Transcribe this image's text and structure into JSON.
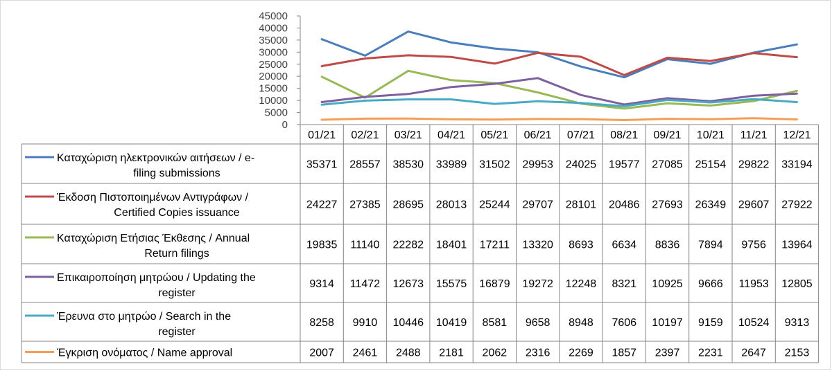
{
  "chart_data": {
    "type": "line",
    "ylim": [
      0,
      45000
    ],
    "yticks": [
      0,
      5000,
      10000,
      15000,
      20000,
      25000,
      30000,
      35000,
      40000,
      45000
    ],
    "grid": false,
    "legend": "data-table-below",
    "categories": [
      "01/21",
      "02/21",
      "03/21",
      "04/21",
      "05/21",
      "06/21",
      "07/21",
      "08/21",
      "09/21",
      "10/21",
      "11/21",
      "12/21"
    ],
    "series": [
      {
        "name": "Καταχώριση ηλεκτρονικών αιτήσεων / e-filing submissions",
        "label_lines": [
          "Καταχώριση ηλεκτρονικών αιτήσεων / e-",
          "filing submissions"
        ],
        "color": "#4a7ebb",
        "values": [
          35371,
          28557,
          38530,
          33989,
          31502,
          29953,
          24025,
          19577,
          27085,
          25154,
          29822,
          33194
        ]
      },
      {
        "name": "Έκδοση Πιστοποιημένων Αντιγράφων / Certified Copies issuance",
        "label_lines": [
          "Έκδοση Πιστοποιημένων Αντιγράφων /",
          "Certified Copies issuance"
        ],
        "color": "#be4b48",
        "values": [
          24227,
          27385,
          28695,
          28013,
          25244,
          29707,
          28101,
          20486,
          27693,
          26349,
          29607,
          27922
        ]
      },
      {
        "name": "Καταχώριση Ετήσιας Έκθεσης / Annual Return filings",
        "label_lines": [
          "Καταχώριση Ετήσιας Έκθεσης / Annual",
          "Return filings"
        ],
        "color": "#98b954",
        "values": [
          19835,
          11140,
          22282,
          18401,
          17211,
          13320,
          8693,
          6634,
          8836,
          7894,
          9756,
          13964
        ]
      },
      {
        "name": "Επικαιροποίηση μητρώου / Updating the register",
        "label_lines": [
          "Επικαιροποίηση μητρώου / Updating the",
          "register"
        ],
        "color": "#7d60a0",
        "values": [
          9314,
          11472,
          12673,
          15575,
          16879,
          19272,
          12248,
          8321,
          10925,
          9666,
          11953,
          12805
        ]
      },
      {
        "name": "Έρευνα στο μητρώο / Search in the register",
        "label_lines": [
          "Έρευνα στο μητρώο / Search in the",
          "register"
        ],
        "color": "#46aac4",
        "values": [
          8258,
          9910,
          10446,
          10419,
          8581,
          9658,
          8948,
          7606,
          10197,
          9159,
          10524,
          9313
        ]
      },
      {
        "name": "Έγκριση ονόματος / Name approval",
        "label_lines": [
          "Έγκριση ονόματος / Name approval"
        ],
        "color": "#f59d56",
        "values": [
          2007,
          2461,
          2488,
          2181,
          2062,
          2316,
          2269,
          1857,
          2397,
          2231,
          2647,
          2153
        ]
      }
    ]
  }
}
